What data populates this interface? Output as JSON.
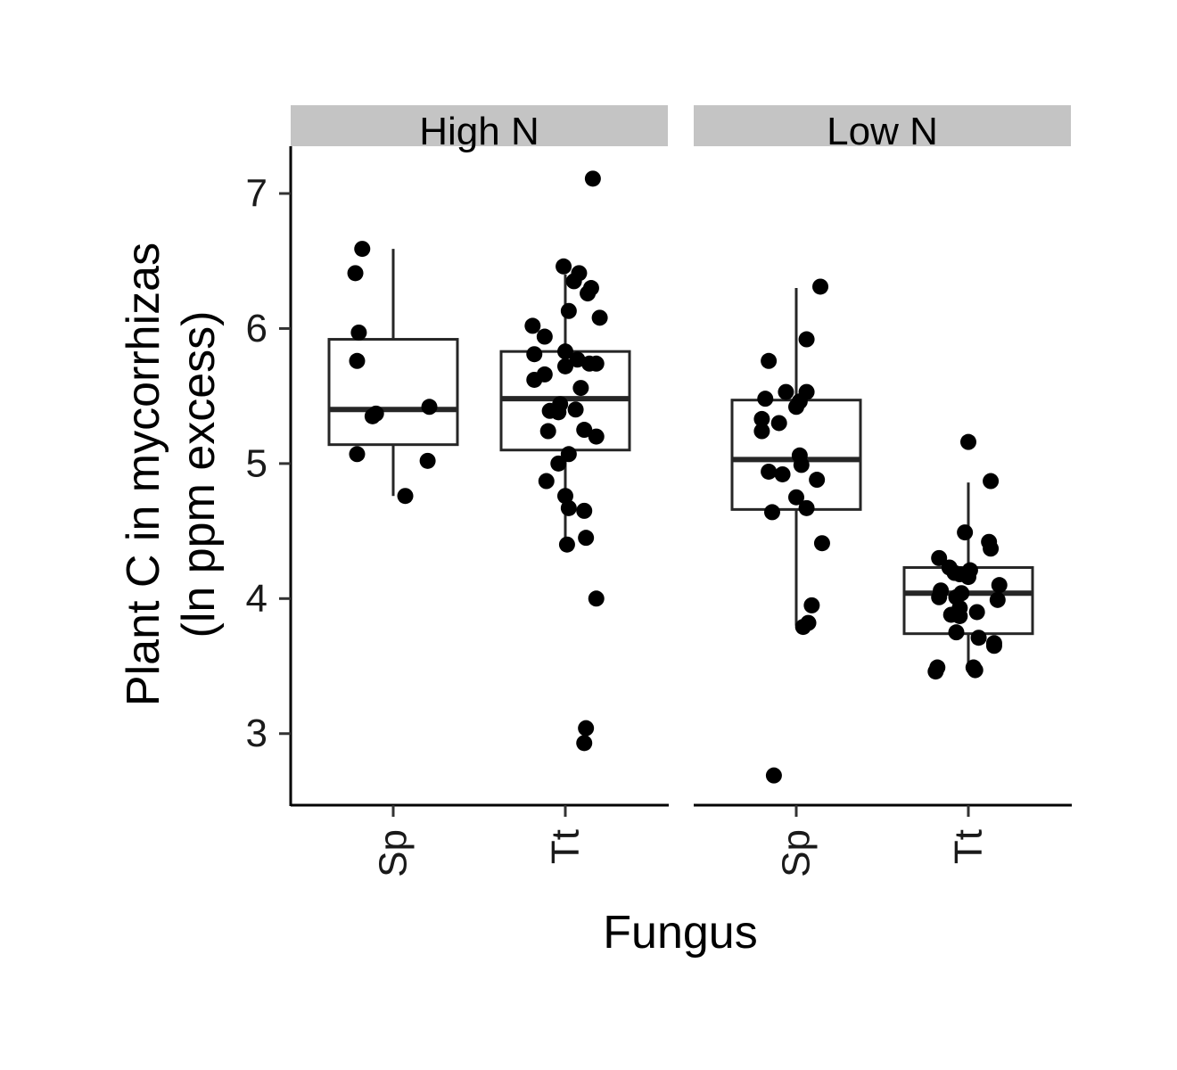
{
  "chart_data": {
    "type": "boxplot",
    "xlabel": "Fungus",
    "ylabel_lines": [
      "Plant C in mycorrhizas",
      "(ln ppm excess)"
    ],
    "ylim": [
      2.47,
      7.35
    ],
    "yticks": [
      3,
      4,
      5,
      6,
      7
    ],
    "grid": false,
    "panels": [
      {
        "facet": "High N",
        "groups": [
          {
            "category": "Sp",
            "box": {
              "q1": 5.14,
              "median": 5.4,
              "q3": 5.92,
              "whisker_low": 4.76,
              "whisker_high": 6.59
            },
            "points": [
              {
                "jitter": -0.18,
                "y": 6.59
              },
              {
                "jitter": -0.22,
                "y": 6.41
              },
              {
                "jitter": -0.2,
                "y": 5.97
              },
              {
                "jitter": -0.21,
                "y": 5.76
              },
              {
                "jitter": -0.1,
                "y": 5.37
              },
              {
                "jitter": -0.12,
                "y": 5.35
              },
              {
                "jitter": 0.21,
                "y": 5.42
              },
              {
                "jitter": -0.21,
                "y": 5.07
              },
              {
                "jitter": 0.2,
                "y": 5.02
              },
              {
                "jitter": 0.07,
                "y": 4.76
              }
            ]
          },
          {
            "category": "Tt",
            "box": {
              "q1": 5.1,
              "median": 5.48,
              "q3": 5.83,
              "whisker_low": 4.43,
              "whisker_high": 6.4
            },
            "points": [
              {
                "jitter": 0.16,
                "y": 7.11
              },
              {
                "jitter": -0.01,
                "y": 6.46
              },
              {
                "jitter": 0.08,
                "y": 6.41
              },
              {
                "jitter": 0.05,
                "y": 6.35
              },
              {
                "jitter": 0.15,
                "y": 6.3
              },
              {
                "jitter": 0.13,
                "y": 6.26
              },
              {
                "jitter": 0.02,
                "y": 6.13
              },
              {
                "jitter": 0.2,
                "y": 6.08
              },
              {
                "jitter": -0.19,
                "y": 6.02
              },
              {
                "jitter": -0.12,
                "y": 5.94
              },
              {
                "jitter": -0.18,
                "y": 5.81
              },
              {
                "jitter": 0.0,
                "y": 5.83
              },
              {
                "jitter": 0.07,
                "y": 5.77
              },
              {
                "jitter": 0.14,
                "y": 5.74
              },
              {
                "jitter": 0.18,
                "y": 5.74
              },
              {
                "jitter": 0.0,
                "y": 5.72
              },
              {
                "jitter": -0.12,
                "y": 5.66
              },
              {
                "jitter": -0.18,
                "y": 5.62
              },
              {
                "jitter": 0.09,
                "y": 5.56
              },
              {
                "jitter": -0.03,
                "y": 5.44
              },
              {
                "jitter": -0.09,
                "y": 5.39
              },
              {
                "jitter": -0.04,
                "y": 5.38
              },
              {
                "jitter": 0.06,
                "y": 5.4
              },
              {
                "jitter": 0.11,
                "y": 5.25
              },
              {
                "jitter": 0.18,
                "y": 5.2
              },
              {
                "jitter": -0.1,
                "y": 5.24
              },
              {
                "jitter": 0.02,
                "y": 5.07
              },
              {
                "jitter": -0.04,
                "y": 5.0
              },
              {
                "jitter": -0.11,
                "y": 4.87
              },
              {
                "jitter": 0.0,
                "y": 4.76
              },
              {
                "jitter": 0.02,
                "y": 4.67
              },
              {
                "jitter": 0.11,
                "y": 4.65
              },
              {
                "jitter": 0.12,
                "y": 4.45
              },
              {
                "jitter": 0.01,
                "y": 4.4
              },
              {
                "jitter": 0.18,
                "y": 4.0
              },
              {
                "jitter": 0.12,
                "y": 3.04
              },
              {
                "jitter": 0.11,
                "y": 2.93
              }
            ]
          }
        ]
      },
      {
        "facet": "Low N",
        "groups": [
          {
            "category": "Sp",
            "box": {
              "q1": 4.66,
              "median": 5.03,
              "q3": 5.47,
              "whisker_low": 3.8,
              "whisker_high": 6.3
            },
            "points": [
              {
                "jitter": 0.14,
                "y": 6.31
              },
              {
                "jitter": 0.06,
                "y": 5.92
              },
              {
                "jitter": -0.16,
                "y": 5.76
              },
              {
                "jitter": -0.06,
                "y": 5.53
              },
              {
                "jitter": 0.06,
                "y": 5.53
              },
              {
                "jitter": -0.18,
                "y": 5.48
              },
              {
                "jitter": 0.02,
                "y": 5.46
              },
              {
                "jitter": 0.0,
                "y": 5.42
              },
              {
                "jitter": -0.2,
                "y": 5.33
              },
              {
                "jitter": -0.1,
                "y": 5.3
              },
              {
                "jitter": -0.2,
                "y": 5.24
              },
              {
                "jitter": 0.02,
                "y": 5.06
              },
              {
                "jitter": 0.03,
                "y": 4.99
              },
              {
                "jitter": -0.16,
                "y": 4.94
              },
              {
                "jitter": -0.08,
                "y": 4.92
              },
              {
                "jitter": 0.12,
                "y": 4.88
              },
              {
                "jitter": 0.0,
                "y": 4.75
              },
              {
                "jitter": 0.06,
                "y": 4.67
              },
              {
                "jitter": -0.14,
                "y": 4.64
              },
              {
                "jitter": 0.15,
                "y": 4.41
              },
              {
                "jitter": 0.09,
                "y": 3.95
              },
              {
                "jitter": 0.07,
                "y": 3.82
              },
              {
                "jitter": 0.04,
                "y": 3.79
              },
              {
                "jitter": -0.13,
                "y": 2.69
              }
            ]
          },
          {
            "category": "Tt",
            "box": {
              "q1": 3.74,
              "median": 4.04,
              "q3": 4.23,
              "whisker_low": 3.52,
              "whisker_high": 4.86
            },
            "points": [
              {
                "jitter": 0.0,
                "y": 5.16
              },
              {
                "jitter": 0.13,
                "y": 4.87
              },
              {
                "jitter": -0.02,
                "y": 4.49
              },
              {
                "jitter": 0.12,
                "y": 4.42
              },
              {
                "jitter": 0.13,
                "y": 4.37
              },
              {
                "jitter": -0.17,
                "y": 4.3
              },
              {
                "jitter": -0.11,
                "y": 4.23
              },
              {
                "jitter": -0.08,
                "y": 4.19
              },
              {
                "jitter": 0.01,
                "y": 4.21
              },
              {
                "jitter": 0.0,
                "y": 4.16
              },
              {
                "jitter": -0.05,
                "y": 4.18
              },
              {
                "jitter": 0.18,
                "y": 4.1
              },
              {
                "jitter": -0.16,
                "y": 4.06
              },
              {
                "jitter": -0.04,
                "y": 4.04
              },
              {
                "jitter": -0.17,
                "y": 4.01
              },
              {
                "jitter": -0.07,
                "y": 4.01
              },
              {
                "jitter": 0.17,
                "y": 3.99
              },
              {
                "jitter": -0.05,
                "y": 3.93
              },
              {
                "jitter": 0.05,
                "y": 3.9
              },
              {
                "jitter": -0.1,
                "y": 3.88
              },
              {
                "jitter": -0.05,
                "y": 3.87
              },
              {
                "jitter": -0.07,
                "y": 3.75
              },
              {
                "jitter": 0.06,
                "y": 3.71
              },
              {
                "jitter": 0.15,
                "y": 3.67
              },
              {
                "jitter": 0.15,
                "y": 3.65
              },
              {
                "jitter": -0.18,
                "y": 3.49
              },
              {
                "jitter": -0.19,
                "y": 3.46
              },
              {
                "jitter": 0.03,
                "y": 3.49
              },
              {
                "jitter": 0.04,
                "y": 3.47
              }
            ]
          }
        ]
      }
    ]
  }
}
